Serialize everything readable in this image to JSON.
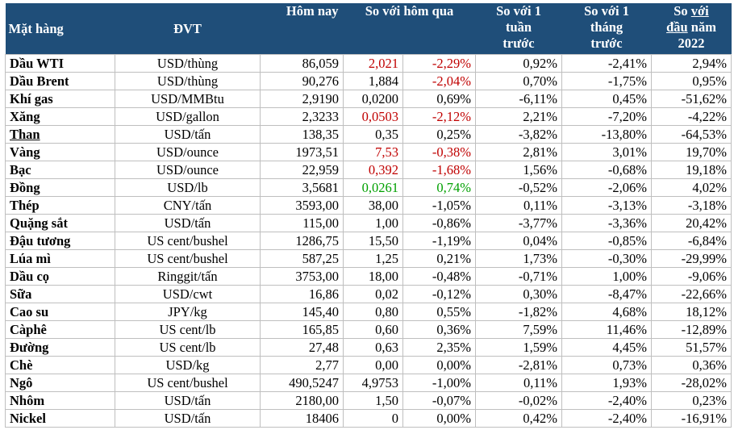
{
  "headers": {
    "item": "Mặt hàng",
    "unit": "ĐVT",
    "today": "Hôm nay",
    "vs_yesterday": "So với hôm qua",
    "vs_week_lines": [
      "So với 1",
      "tuần",
      "trước"
    ],
    "vs_month_lines": [
      "So với 1",
      "tháng",
      "trước"
    ],
    "vs_ytd_parts": [
      "So ",
      "với",
      "đầu",
      " năm",
      "2022"
    ]
  },
  "rows": [
    {
      "name": "Dầu WTI",
      "unit": "USD/thùng",
      "today": "86,059",
      "chg": "2,021",
      "chg_pct": "-2,29%",
      "dir": "down",
      "week": "0,92%",
      "month": "-2,41%",
      "ytd": "2,94%"
    },
    {
      "name": "Dầu Brent",
      "unit": "USD/thùng",
      "today": "90,276",
      "chg": "1,884",
      "chg_pct": "-2,04%",
      "dir": "down-pct",
      "week": "0,70%",
      "month": "-1,75%",
      "ytd": "0,95%"
    },
    {
      "name": "Khí gas",
      "unit": "USD/MMBtu",
      "today": "2,9190",
      "chg": "0,0200",
      "chg_pct": "0,69%",
      "dir": "neutral",
      "week": "-6,11%",
      "month": "0,45%",
      "ytd": "-51,62%"
    },
    {
      "name": "Xăng",
      "unit": "USD/gallon",
      "today": "2,3233",
      "chg": "0,0503",
      "chg_pct": "-2,12%",
      "dir": "down",
      "week": "2,21%",
      "month": "-7,20%",
      "ytd": "-4,22%"
    },
    {
      "name": "Than",
      "unit": "USD/tấn",
      "today": "138,35",
      "chg": "0,35",
      "chg_pct": "0,25%",
      "dir": "neutral",
      "week": "-3,82%",
      "month": "-13,80%",
      "ytd": "-64,53%",
      "underline": true
    },
    {
      "name": "Vàng",
      "unit": "USD/ounce",
      "today": "1973,51",
      "chg": "7,53",
      "chg_pct": "-0,38%",
      "dir": "down",
      "week": "2,81%",
      "month": "3,01%",
      "ytd": "19,70%"
    },
    {
      "name": "Bạc",
      "unit": "USD/ounce",
      "today": "22,959",
      "chg": "0,392",
      "chg_pct": "-1,68%",
      "dir": "down",
      "week": "1,56%",
      "month": "-0,68%",
      "ytd": "19,18%"
    },
    {
      "name": "Đồng",
      "unit": "USD/lb",
      "today": "3,5681",
      "chg": "0,0261",
      "chg_pct": "0,74%",
      "dir": "up",
      "week": "-0,52%",
      "month": "-2,06%",
      "ytd": "4,02%"
    },
    {
      "name": "Thép",
      "unit": "CNY/tấn",
      "today": "3593,00",
      "chg": "38,00",
      "chg_pct": "-1,05%",
      "dir": "neutral",
      "week": "0,11%",
      "month": "-3,13%",
      "ytd": "-3,18%"
    },
    {
      "name": "Quặng sắt",
      "unit": "USD/tấn",
      "today": "115,00",
      "chg": "1,00",
      "chg_pct": "-0,86%",
      "dir": "neutral",
      "week": "-3,77%",
      "month": "-3,36%",
      "ytd": "20,42%"
    },
    {
      "name": "Đậu tương",
      "unit": "US cent/bushel",
      "today": "1286,75",
      "chg": "15,50",
      "chg_pct": "-1,19%",
      "dir": "neutral",
      "week": "0,04%",
      "month": "-0,85%",
      "ytd": "-6,84%"
    },
    {
      "name": "Lúa mì",
      "unit": "US cent/bushel",
      "today": "587,25",
      "chg": "1,25",
      "chg_pct": "0,21%",
      "dir": "neutral",
      "week": "1,73%",
      "month": "-0,30%",
      "ytd": "-29,99%"
    },
    {
      "name": "Dầu cọ",
      "unit": "Ringgit/tấn",
      "today": "3753,00",
      "chg": "18,00",
      "chg_pct": "-0,48%",
      "dir": "neutral",
      "week": "-0,71%",
      "month": "1,00%",
      "ytd": "-9,06%"
    },
    {
      "name": "Sữa",
      "unit": "USD/cwt",
      "today": "16,86",
      "chg": "0,02",
      "chg_pct": "-0,12%",
      "dir": "neutral",
      "week": "0,30%",
      "month": "-8,47%",
      "ytd": "-22,66%"
    },
    {
      "name": "Cao su",
      "unit": "JPY/kg",
      "today": "145,40",
      "chg": "0,80",
      "chg_pct": "0,55%",
      "dir": "neutral",
      "week": "-1,82%",
      "month": "4,68%",
      "ytd": "18,12%"
    },
    {
      "name": "Càphê",
      "unit": "US cent/lb",
      "today": "165,85",
      "chg": "0,60",
      "chg_pct": "0,36%",
      "dir": "neutral",
      "week": "7,59%",
      "month": "11,46%",
      "ytd": "-12,89%"
    },
    {
      "name": "Đường",
      "unit": "US cent/lb",
      "today": "27,48",
      "chg": "0,63",
      "chg_pct": "2,35%",
      "dir": "neutral",
      "week": "1,59%",
      "month": "4,45%",
      "ytd": "51,57%"
    },
    {
      "name": "Chè",
      "unit": "USD/kg",
      "today": "2,77",
      "chg": "0,00",
      "chg_pct": "0,00%",
      "dir": "neutral",
      "week": "-2,81%",
      "month": "0,73%",
      "ytd": "0,36%"
    },
    {
      "name": "Ngô",
      "unit": "US cent/bushel",
      "today": "490,5247",
      "chg": "4,9753",
      "chg_pct": "-1,00%",
      "dir": "neutral",
      "week": "0,11%",
      "month": "1,93%",
      "ytd": "-28,02%"
    },
    {
      "name": "Nhôm",
      "unit": "USD/tấn",
      "today": "2180,00",
      "chg": "1,50",
      "chg_pct": "-0,07%",
      "dir": "neutral",
      "week": "-0,02%",
      "month": "-2,40%",
      "ytd": "0,23%"
    },
    {
      "name": "Nickel",
      "unit": "USD/tấn",
      "today": "18406",
      "chg": "0",
      "chg_pct": "0,00%",
      "dir": "neutral",
      "week": "0,42%",
      "month": "-2,40%",
      "ytd": "-16,91%"
    }
  ],
  "colors": {
    "header_bg": "#1f4e79",
    "header_text": "#ffffff",
    "down": "#c00000",
    "up": "#00a000",
    "grid": "#bfbfbf"
  }
}
